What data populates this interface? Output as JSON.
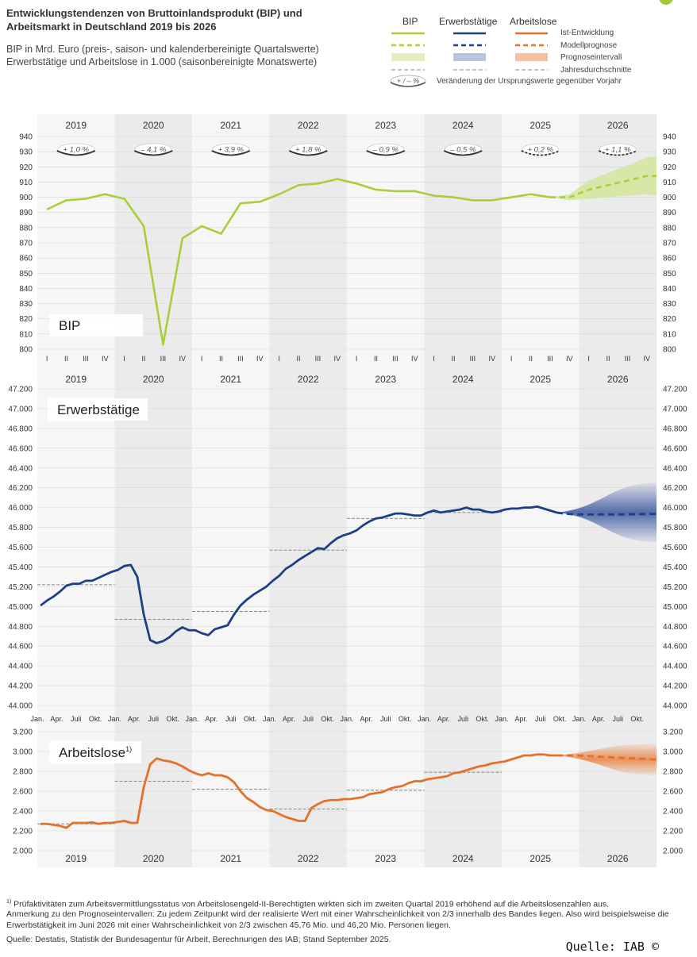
{
  "header": {
    "title": "Entwicklungstendenzen von Bruttoinlandsprodukt (BIP) und Arbeitsmarkt in Deutschland 2019 bis 2026",
    "subtitle_line1": "BIP in Mrd. Euro (preis-, saison- und kalenderbereinigte Quartalswerte)",
    "subtitle_line2": "Erwerbstätige und Arbeitslose in 1.000 (saisonbereinigte Monatswerte)"
  },
  "legend": {
    "col_bip": "BIP",
    "col_erw": "Erwerbstätige",
    "col_arb": "Arbeitslose",
    "row_ist": "Ist-Entwicklung",
    "row_modell": "Modellprognose",
    "row_prognose": "Prognoseintervall",
    "row_jahr": "Jahresdurchschnitte",
    "badge_label": "+ / – %",
    "badge_text": "Veränderung der Ursprungswerte gegenüber Vorjahr"
  },
  "colors": {
    "bip": "#a8cf3a",
    "erw": "#1c3f85",
    "arb": "#e4702a",
    "band_shade": "#ebebeb",
    "grid": "#d6d6d6",
    "avg_line": "#888888"
  },
  "years": [
    "2019",
    "2020",
    "2021",
    "2022",
    "2023",
    "2024",
    "2025",
    "2026"
  ],
  "quarter_labels": [
    "I",
    "II",
    "III",
    "IV"
  ],
  "month_labels": [
    "Jan.",
    "Apr.",
    "Juli",
    "Okt."
  ],
  "chart_data": [
    {
      "type": "line",
      "panel_label": "BIP",
      "unit": "Mrd. Euro",
      "ylim": [
        800,
        940
      ],
      "yticks": [
        800,
        810,
        820,
        830,
        840,
        850,
        860,
        870,
        880,
        890,
        900,
        910,
        920,
        930,
        940
      ],
      "ytick_labels": [
        "800",
        "810",
        "820",
        "830",
        "840",
        "850",
        "860",
        "870",
        "880",
        "890",
        "900",
        "910",
        "920",
        "930",
        "940"
      ],
      "x": [
        "2019 Q1",
        "2019 Q2",
        "2019 Q3",
        "2019 Q4",
        "2020 Q1",
        "2020 Q2",
        "2020 Q3",
        "2020 Q4",
        "2021 Q1",
        "2021 Q2",
        "2021 Q3",
        "2021 Q4",
        "2022 Q1",
        "2022 Q2",
        "2022 Q3",
        "2022 Q4",
        "2023 Q1",
        "2023 Q2",
        "2023 Q3",
        "2023 Q4",
        "2024 Q1",
        "2024 Q2",
        "2024 Q3",
        "2024 Q4",
        "2025 Q1",
        "2025 Q2",
        "2025 Q3",
        "2025 Q4",
        "2026 Q1",
        "2026 Q2",
        "2026 Q3",
        "2026 Q4"
      ],
      "series": [
        {
          "kind": "actual",
          "values": [
            892,
            898,
            899,
            902,
            899,
            881,
            803,
            873,
            881,
            876,
            896,
            897,
            902,
            908,
            909,
            912,
            909,
            905,
            904,
            904,
            901,
            900,
            898,
            898,
            900,
            902,
            900,
            null,
            null,
            null,
            null,
            null
          ]
        },
        {
          "kind": "forecast",
          "values": [
            null,
            null,
            null,
            null,
            null,
            null,
            null,
            null,
            null,
            null,
            null,
            null,
            null,
            null,
            null,
            null,
            null,
            null,
            null,
            null,
            null,
            null,
            null,
            null,
            null,
            null,
            900,
            900,
            905,
            908,
            911,
            914
          ]
        }
      ],
      "forecast_band_halfwidth": [
        0,
        2,
        6,
        8,
        10,
        12
      ],
      "year_changes": [
        {
          "year": "2019",
          "label": "+ 1,0 %",
          "forecast": false
        },
        {
          "year": "2020",
          "label": "– 4,1 %",
          "forecast": false
        },
        {
          "year": "2021",
          "label": "+ 3,9 %",
          "forecast": false
        },
        {
          "year": "2022",
          "label": "+ 1,8 %",
          "forecast": false
        },
        {
          "year": "2023",
          "label": "– 0,9 %",
          "forecast": false
        },
        {
          "year": "2024",
          "label": "– 0,5 %",
          "forecast": false
        },
        {
          "year": "2025",
          "label": "+ 0,2 %",
          "forecast": true
        },
        {
          "year": "2026",
          "label": "+ 1,1 %",
          "forecast": true
        }
      ]
    },
    {
      "type": "line",
      "panel_label": "Erwerbstätige",
      "unit": "1.000",
      "ylim": [
        44000,
        47200
      ],
      "yticks": [
        44000,
        44200,
        44400,
        44600,
        44800,
        45000,
        45200,
        45400,
        45600,
        45800,
        46000,
        46200,
        46400,
        46600,
        46800,
        47000,
        47200
      ],
      "ytick_labels": [
        "44.000",
        "44.200",
        "44.400",
        "44.600",
        "44.800",
        "45.000",
        "45.200",
        "45.400",
        "45.600",
        "45.800",
        "46.000",
        "46.200",
        "46.400",
        "46.600",
        "46.800",
        "47.000",
        "47.200"
      ],
      "months": [
        "2019-01",
        "2019-07",
        "2020-01",
        "2020-04",
        "2020-07",
        "2020-10",
        "2021-01",
        "2021-07",
        "2022-01",
        "2022-07",
        "2023-01",
        "2023-07",
        "2024-01",
        "2024-07",
        "2025-01",
        "2025-07",
        "2025-10",
        "2026-12"
      ],
      "actual_points": [
        [
          "2019-01",
          45010
        ],
        [
          "2019-02",
          45060
        ],
        [
          "2019-03",
          45100
        ],
        [
          "2019-04",
          45150
        ],
        [
          "2019-05",
          45210
        ],
        [
          "2019-06",
          45230
        ],
        [
          "2019-07",
          45230
        ],
        [
          "2019-08",
          45260
        ],
        [
          "2019-09",
          45260
        ],
        [
          "2019-10",
          45290
        ],
        [
          "2019-11",
          45320
        ],
        [
          "2019-12",
          45350
        ],
        [
          "2020-01",
          45370
        ],
        [
          "2020-02",
          45410
        ],
        [
          "2020-03",
          45420
        ],
        [
          "2020-04",
          45300
        ],
        [
          "2020-05",
          44920
        ],
        [
          "2020-06",
          44660
        ],
        [
          "2020-07",
          44630
        ],
        [
          "2020-08",
          44650
        ],
        [
          "2020-09",
          44690
        ],
        [
          "2020-10",
          44750
        ],
        [
          "2020-11",
          44790
        ],
        [
          "2020-12",
          44760
        ],
        [
          "2021-01",
          44760
        ],
        [
          "2021-02",
          44730
        ],
        [
          "2021-03",
          44710
        ],
        [
          "2021-04",
          44770
        ],
        [
          "2021-05",
          44790
        ],
        [
          "2021-06",
          44810
        ],
        [
          "2021-07",
          44920
        ],
        [
          "2021-08",
          45010
        ],
        [
          "2021-09",
          45070
        ],
        [
          "2021-10",
          45120
        ],
        [
          "2021-11",
          45160
        ],
        [
          "2021-12",
          45200
        ],
        [
          "2022-01",
          45260
        ],
        [
          "2022-02",
          45310
        ],
        [
          "2022-03",
          45380
        ],
        [
          "2022-04",
          45420
        ],
        [
          "2022-05",
          45470
        ],
        [
          "2022-06",
          45510
        ],
        [
          "2022-07",
          45550
        ],
        [
          "2022-08",
          45590
        ],
        [
          "2022-09",
          45580
        ],
        [
          "2022-10",
          45640
        ],
        [
          "2022-11",
          45690
        ],
        [
          "2022-12",
          45720
        ],
        [
          "2023-01",
          45740
        ],
        [
          "2023-02",
          45770
        ],
        [
          "2023-03",
          45820
        ],
        [
          "2023-04",
          45860
        ],
        [
          "2023-05",
          45890
        ],
        [
          "2023-06",
          45900
        ],
        [
          "2023-07",
          45920
        ],
        [
          "2023-08",
          45940
        ],
        [
          "2023-09",
          45940
        ],
        [
          "2023-10",
          45930
        ],
        [
          "2023-11",
          45920
        ],
        [
          "2023-12",
          45920
        ],
        [
          "2024-01",
          45950
        ],
        [
          "2024-02",
          45970
        ],
        [
          "2024-03",
          45950
        ],
        [
          "2024-04",
          45960
        ],
        [
          "2024-05",
          45970
        ],
        [
          "2024-06",
          45980
        ],
        [
          "2024-07",
          46000
        ],
        [
          "2024-08",
          45980
        ],
        [
          "2024-09",
          45980
        ],
        [
          "2024-10",
          45960
        ],
        [
          "2024-11",
          45950
        ],
        [
          "2024-12",
          45960
        ],
        [
          "2025-01",
          45980
        ],
        [
          "2025-02",
          45990
        ],
        [
          "2025-03",
          45990
        ],
        [
          "2025-04",
          46000
        ],
        [
          "2025-05",
          46000
        ],
        [
          "2025-06",
          46010
        ],
        [
          "2025-07",
          45990
        ],
        [
          "2025-08",
          45970
        ],
        [
          "2025-09",
          45950
        ]
      ],
      "forecast_points": [
        [
          "2025-09",
          45950
        ],
        [
          "2025-10",
          45940
        ],
        [
          "2025-12",
          45930
        ],
        [
          "2026-06",
          45930
        ],
        [
          "2026-12",
          45935
        ]
      ],
      "forecast_band_end": [
        45650,
        46250
      ],
      "annual_averages": [
        [
          "2019",
          45220
        ],
        [
          "2020",
          44870
        ],
        [
          "2021",
          44950
        ],
        [
          "2022",
          45570
        ],
        [
          "2023",
          45890
        ],
        [
          "2024",
          45950
        ]
      ]
    },
    {
      "type": "line",
      "panel_label": "Arbeitslose",
      "panel_label_sup": "1)",
      "unit": "1.000",
      "ylim": [
        2000,
        3200
      ],
      "yticks": [
        2000,
        2200,
        2400,
        2600,
        2800,
        3000,
        3200
      ],
      "ytick_labels": [
        "2.000",
        "2.200",
        "2.400",
        "2.600",
        "2.800",
        "3.000",
        "3.200"
      ],
      "actual_points": [
        [
          "2019-01",
          2270
        ],
        [
          "2019-02",
          2270
        ],
        [
          "2019-03",
          2260
        ],
        [
          "2019-04",
          2250
        ],
        [
          "2019-05",
          2230
        ],
        [
          "2019-06",
          2280
        ],
        [
          "2019-07",
          2280
        ],
        [
          "2019-08",
          2280
        ],
        [
          "2019-09",
          2285
        ],
        [
          "2019-10",
          2270
        ],
        [
          "2019-11",
          2280
        ],
        [
          "2019-12",
          2280
        ],
        [
          "2020-01",
          2290
        ],
        [
          "2020-02",
          2300
        ],
        [
          "2020-03",
          2280
        ],
        [
          "2020-04",
          2280
        ],
        [
          "2020-05",
          2640
        ],
        [
          "2020-06",
          2870
        ],
        [
          "2020-07",
          2930
        ],
        [
          "2020-08",
          2910
        ],
        [
          "2020-09",
          2900
        ],
        [
          "2020-10",
          2880
        ],
        [
          "2020-11",
          2850
        ],
        [
          "2020-12",
          2810
        ],
        [
          "2021-01",
          2780
        ],
        [
          "2021-02",
          2760
        ],
        [
          "2021-03",
          2780
        ],
        [
          "2021-04",
          2760
        ],
        [
          "2021-05",
          2760
        ],
        [
          "2021-06",
          2740
        ],
        [
          "2021-07",
          2690
        ],
        [
          "2021-08",
          2600
        ],
        [
          "2021-09",
          2530
        ],
        [
          "2021-10",
          2490
        ],
        [
          "2021-11",
          2440
        ],
        [
          "2021-12",
          2410
        ],
        [
          "2022-01",
          2400
        ],
        [
          "2022-02",
          2370
        ],
        [
          "2022-03",
          2340
        ],
        [
          "2022-04",
          2320
        ],
        [
          "2022-05",
          2300
        ],
        [
          "2022-06",
          2300
        ],
        [
          "2022-07",
          2430
        ],
        [
          "2022-08",
          2470
        ],
        [
          "2022-09",
          2500
        ],
        [
          "2022-10",
          2510
        ],
        [
          "2022-11",
          2510
        ],
        [
          "2022-12",
          2520
        ],
        [
          "2023-01",
          2520
        ],
        [
          "2023-02",
          2530
        ],
        [
          "2023-03",
          2540
        ],
        [
          "2023-04",
          2570
        ],
        [
          "2023-05",
          2580
        ],
        [
          "2023-06",
          2590
        ],
        [
          "2023-07",
          2620
        ],
        [
          "2023-08",
          2640
        ],
        [
          "2023-09",
          2650
        ],
        [
          "2023-10",
          2680
        ],
        [
          "2023-11",
          2700
        ],
        [
          "2023-12",
          2700
        ],
        [
          "2024-01",
          2720
        ],
        [
          "2024-02",
          2730
        ],
        [
          "2024-03",
          2740
        ],
        [
          "2024-04",
          2750
        ],
        [
          "2024-05",
          2780
        ],
        [
          "2024-06",
          2790
        ],
        [
          "2024-07",
          2810
        ],
        [
          "2024-08",
          2830
        ],
        [
          "2024-09",
          2850
        ],
        [
          "2024-10",
          2860
        ],
        [
          "2024-11",
          2880
        ],
        [
          "2024-12",
          2890
        ],
        [
          "2025-01",
          2900
        ],
        [
          "2025-02",
          2920
        ],
        [
          "2025-03",
          2940
        ],
        [
          "2025-04",
          2960
        ],
        [
          "2025-05",
          2960
        ],
        [
          "2025-06",
          2970
        ],
        [
          "2025-07",
          2970
        ],
        [
          "2025-08",
          2960
        ],
        [
          "2025-09",
          2960
        ]
      ],
      "forecast_points": [
        [
          "2025-09",
          2960
        ],
        [
          "2025-12",
          2960
        ],
        [
          "2026-06",
          2940
        ],
        [
          "2026-12",
          2920
        ]
      ],
      "forecast_band_end": [
        2760,
        3080
      ],
      "annual_averages": [
        [
          "2019",
          2270
        ],
        [
          "2020",
          2700
        ],
        [
          "2021",
          2620
        ],
        [
          "2022",
          2420
        ],
        [
          "2023",
          2610
        ],
        [
          "2024",
          2790
        ]
      ]
    }
  ],
  "footer": {
    "note1_sup": "1)",
    "note1": "Prüfaktivitäten zum Arbeitsvermittlungsstatus von Arbeitslosengeld-II-Berechtigten wirkten sich im zweiten Quartal 2019 erhöhend auf die Arbeitslosenzahlen aus.",
    "note2": "Anmerkung zu den Prognoseintervallen: Zu jedem Zeitpunkt wird der realisierte Wert mit einer Wahrscheinlichkeit von 2/3 innerhalb des Bandes liegen. Also wird beispielsweise die Erwerbstätigkeit im Juni 2026 mit einer Wahrscheinlichkeit von 2/3 zwischen 45,76 Mio. und 46,20 Mio. Personen liegen.",
    "source": "Quelle: Destatis, Statistik der Bundesagentur für Arbeit, Berechnungen des IAB; Stand September 2025.",
    "credit": "Quelle: IAB ©"
  }
}
